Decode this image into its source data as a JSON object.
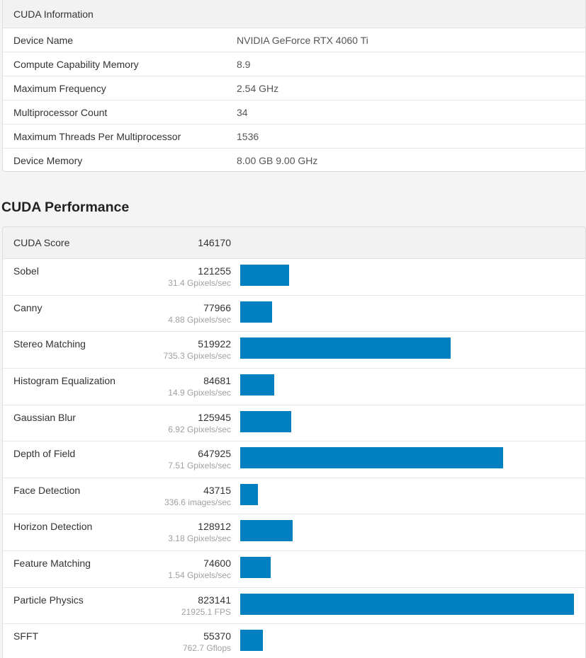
{
  "info": {
    "title": "CUDA Information",
    "rows": [
      {
        "label": "Device Name",
        "value": "NVIDIA GeForce RTX 4060 Ti"
      },
      {
        "label": "Compute Capability Memory",
        "value": "8.9"
      },
      {
        "label": "Maximum Frequency",
        "value": "2.54 GHz"
      },
      {
        "label": "Multiprocessor Count",
        "value": "34"
      },
      {
        "label": "Maximum Threads Per Multiprocessor",
        "value": "1536"
      },
      {
        "label": "Device Memory",
        "value": "8.00 GB 9.00 GHz"
      }
    ]
  },
  "performance": {
    "section_title": "CUDA Performance",
    "score_label": "CUDA Score",
    "score_value": "146170",
    "bar_color": "#0080c0",
    "max_score": 823141,
    "rows": [
      {
        "name": "Sobel",
        "score": 121255,
        "sub": "31.4 Gpixels/sec"
      },
      {
        "name": "Canny",
        "score": 77966,
        "sub": "4.88 Gpixels/sec"
      },
      {
        "name": "Stereo Matching",
        "score": 519922,
        "sub": "735.3 Gpixels/sec"
      },
      {
        "name": "Histogram Equalization",
        "score": 84681,
        "sub": "14.9 Gpixels/sec"
      },
      {
        "name": "Gaussian Blur",
        "score": 125945,
        "sub": "6.92 Gpixels/sec"
      },
      {
        "name": "Depth of Field",
        "score": 647925,
        "sub": "7.51 Gpixels/sec"
      },
      {
        "name": "Face Detection",
        "score": 43715,
        "sub": "336.6 images/sec"
      },
      {
        "name": "Horizon Detection",
        "score": 128912,
        "sub": "3.18 Gpixels/sec"
      },
      {
        "name": "Feature Matching",
        "score": 74600,
        "sub": "1.54 Gpixels/sec"
      },
      {
        "name": "Particle Physics",
        "score": 823141,
        "sub": "21925.1 FPS"
      },
      {
        "name": "SFFT",
        "score": 55370,
        "sub": "762.7 Gflops"
      }
    ]
  }
}
